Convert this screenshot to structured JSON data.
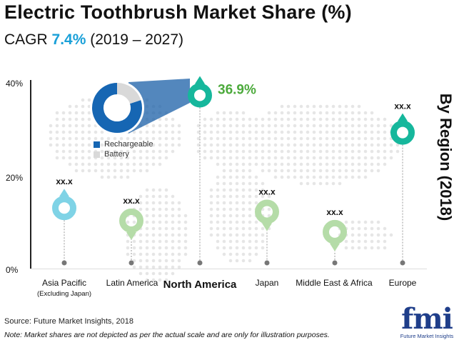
{
  "title": "Electric Toothbrush Market Share (%)",
  "subtitle": {
    "prefix": "CAGR ",
    "value": "7.4%",
    "suffix": " (2019 – 2027)"
  },
  "side_label": "By Region (2018)",
  "donut_legend": [
    {
      "label": "Rechargeable",
      "color": "#1666b3"
    },
    {
      "label": "Battery",
      "color": "#d9d9d9"
    }
  ],
  "source": "Source: Future Market Insights, 2018",
  "note": "Note: Market shares are not depicted as per the actual scale and are only for illustration purposes.",
  "logo": {
    "text": "fmi",
    "tagline": "Future Market Insights"
  },
  "chart_data": {
    "type": "scatter",
    "ylim": [
      0,
      40
    ],
    "yticks": [
      "0%",
      "20%",
      "40%"
    ],
    "categories": [
      {
        "name": "Asia Pacific",
        "sub": "(Excluding Japan)",
        "value": 13,
        "label": "xx.x",
        "direction": "up",
        "color": "#7fd3e6",
        "bold": false
      },
      {
        "name": "Latin America",
        "value": 10.3,
        "label": "xx.x",
        "direction": "down",
        "color": "#b5dca8",
        "bold": false
      },
      {
        "name": "North America",
        "value": 36.9,
        "label": "36.9%",
        "direction": "up",
        "color": "#16b79c",
        "bold": true
      },
      {
        "name": "Japan",
        "value": 12.2,
        "label": "xx.x",
        "direction": "down",
        "color": "#b5dca8",
        "bold": false
      },
      {
        "name": "Middle East & Africa",
        "value": 7.9,
        "label": "xx.x",
        "direction": "down",
        "color": "#b5dca8",
        "bold": false
      },
      {
        "name": "Europe",
        "value": 29,
        "label": "xx.x",
        "direction": "up",
        "color": "#16b79c",
        "bold": false
      }
    ],
    "donut": {
      "values": [
        80,
        20
      ]
    }
  }
}
